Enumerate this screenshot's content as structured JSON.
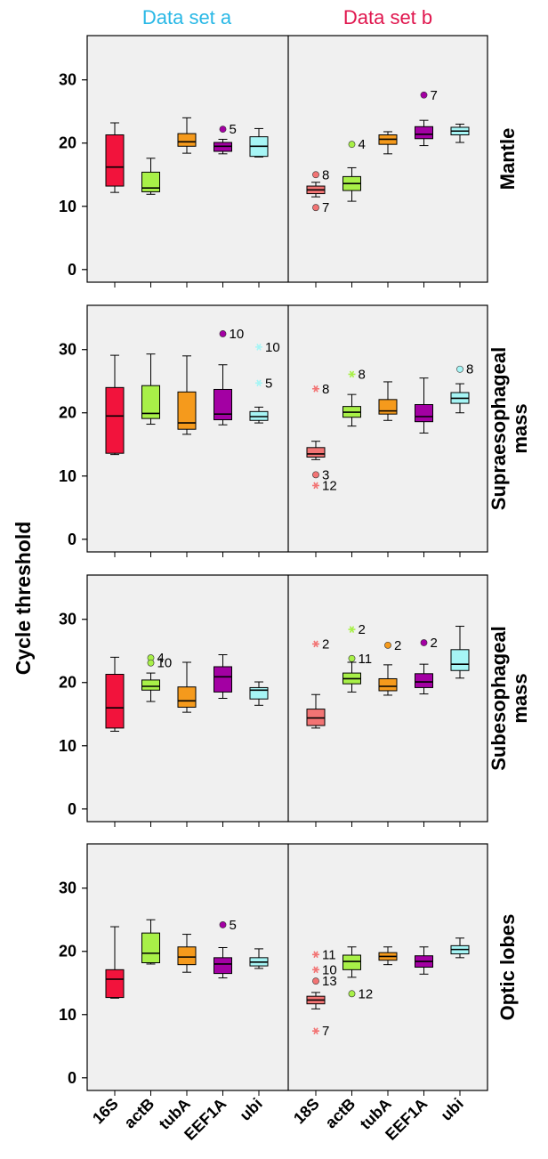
{
  "colors": {
    "16S": "#f2133c",
    "18S": "#f27474",
    "actB": "#a8f048",
    "tubA": "#f59a1c",
    "EEF1A": "#a300a3",
    "ubi": "#a6f5f5",
    "header_a": "#29b8e6",
    "header_b": "#e0164e"
  },
  "chart_data": {
    "type": "boxplot",
    "ylabel": "Cycle threshold",
    "ylim": [
      -2,
      37
    ],
    "yticks": [
      0,
      10,
      20,
      30
    ],
    "columns": [
      {
        "header": "Data set a",
        "categories": [
          "16S",
          "actB",
          "tubA",
          "EEF1A",
          "ubi"
        ]
      },
      {
        "header": "Data set b",
        "categories": [
          "18S",
          "actB",
          "tubA",
          "EEF1A",
          "ubi"
        ]
      }
    ],
    "rows": [
      {
        "label": [
          "Mantle"
        ],
        "panels": [
          [
            {
              "min": 12.2,
              "q1": 13.2,
              "median": 16.2,
              "q3": 21.3,
              "max": 23.2,
              "outliers": []
            },
            {
              "min": 11.9,
              "q1": 12.3,
              "median": 12.9,
              "q3": 15.4,
              "max": 17.6,
              "outliers": []
            },
            {
              "min": 18.4,
              "q1": 19.5,
              "median": 20.2,
              "q3": 21.5,
              "max": 24.0,
              "outliers": []
            },
            {
              "min": 18.3,
              "q1": 18.7,
              "median": 19.5,
              "q3": 20.1,
              "max": 20.6,
              "outliers": [
                {
                  "value": 22.2,
                  "label": "5",
                  "marker": "circle"
                }
              ]
            },
            {
              "min": 17.8,
              "q1": 17.9,
              "median": 19.5,
              "q3": 21.0,
              "max": 22.3,
              "outliers": []
            }
          ],
          [
            {
              "min": 11.5,
              "q1": 12.0,
              "median": 12.6,
              "q3": 13.2,
              "max": 13.8,
              "outliers": [
                {
                  "value": 15.0,
                  "label": "8",
                  "marker": "circle"
                },
                {
                  "value": 9.8,
                  "label": "7",
                  "marker": "circle"
                }
              ]
            },
            {
              "min": 10.8,
              "q1": 12.5,
              "median": 13.6,
              "q3": 14.7,
              "max": 16.1,
              "outliers": [
                {
                  "value": 19.8,
                  "label": "4",
                  "marker": "circle"
                }
              ]
            },
            {
              "min": 18.3,
              "q1": 19.8,
              "median": 20.6,
              "q3": 21.3,
              "max": 21.8,
              "outliers": []
            },
            {
              "min": 19.6,
              "q1": 20.7,
              "median": 21.4,
              "q3": 22.6,
              "max": 23.6,
              "outliers": [
                {
                  "value": 27.6,
                  "label": "7",
                  "marker": "circle"
                }
              ]
            },
            {
              "min": 20.1,
              "q1": 21.3,
              "median": 21.9,
              "q3": 22.5,
              "max": 23.0,
              "outliers": []
            }
          ]
        ]
      },
      {
        "label": [
          "Supraesophageal",
          "mass"
        ],
        "panels": [
          [
            {
              "min": 13.4,
              "q1": 13.6,
              "median": 19.5,
              "q3": 24.0,
              "max": 29.1,
              "outliers": []
            },
            {
              "min": 18.2,
              "q1": 19.1,
              "median": 19.9,
              "q3": 24.3,
              "max": 29.3,
              "outliers": []
            },
            {
              "min": 16.6,
              "q1": 17.4,
              "median": 18.4,
              "q3": 23.3,
              "max": 29.0,
              "outliers": []
            },
            {
              "min": 18.1,
              "q1": 18.9,
              "median": 19.8,
              "q3": 23.7,
              "max": 27.6,
              "outliers": [
                {
                  "value": 32.5,
                  "label": "10",
                  "marker": "circle"
                }
              ]
            },
            {
              "min": 18.4,
              "q1": 18.8,
              "median": 19.4,
              "q3": 20.2,
              "max": 20.9,
              "outliers": [
                {
                  "value": 30.4,
                  "label": "10",
                  "marker": "star"
                },
                {
                  "value": 24.7,
                  "label": "5",
                  "marker": "star"
                }
              ]
            }
          ],
          [
            {
              "min": 12.6,
              "q1": 13.0,
              "median": 13.5,
              "q3": 14.5,
              "max": 15.5,
              "outliers": [
                {
                  "value": 23.8,
                  "label": "8",
                  "marker": "star"
                },
                {
                  "value": 10.2,
                  "label": "3",
                  "marker": "circle"
                },
                {
                  "value": 8.5,
                  "label": "12",
                  "marker": "star"
                }
              ]
            },
            {
              "min": 17.9,
              "q1": 19.3,
              "median": 20.1,
              "q3": 21.0,
              "max": 22.9,
              "outliers": [
                {
                  "value": 26.1,
                  "label": "8",
                  "marker": "star"
                }
              ]
            },
            {
              "min": 18.8,
              "q1": 19.8,
              "median": 20.3,
              "q3": 22.1,
              "max": 24.9,
              "outliers": []
            },
            {
              "min": 16.8,
              "q1": 18.6,
              "median": 19.4,
              "q3": 21.3,
              "max": 25.5,
              "outliers": []
            },
            {
              "min": 20.0,
              "q1": 21.5,
              "median": 22.3,
              "q3": 23.2,
              "max": 24.6,
              "outliers": [
                {
                  "value": 26.9,
                  "label": "8",
                  "marker": "circle"
                }
              ]
            }
          ]
        ]
      },
      {
        "label": [
          "Subesophageal",
          "mass"
        ],
        "panels": [
          [
            {
              "min": 12.3,
              "q1": 12.8,
              "median": 16.0,
              "q3": 21.3,
              "max": 24.0,
              "outliers": []
            },
            {
              "min": 17.0,
              "q1": 18.8,
              "median": 19.4,
              "q3": 20.4,
              "max": 21.5,
              "outliers": [
                {
                  "value": 23.9,
                  "label": "4",
                  "marker": "circle"
                },
                {
                  "value": 23.1,
                  "label": "10",
                  "marker": "circle"
                }
              ]
            },
            {
              "min": 15.3,
              "q1": 16.1,
              "median": 17.1,
              "q3": 19.3,
              "max": 23.2,
              "outliers": []
            },
            {
              "min": 17.5,
              "q1": 18.5,
              "median": 20.9,
              "q3": 22.5,
              "max": 24.4,
              "outliers": []
            },
            {
              "min": 16.4,
              "q1": 17.4,
              "median": 18.8,
              "q3": 19.2,
              "max": 20.1,
              "outliers": []
            }
          ],
          [
            {
              "min": 12.8,
              "q1": 13.2,
              "median": 14.4,
              "q3": 15.8,
              "max": 18.1,
              "outliers": [
                {
                  "value": 26.1,
                  "label": "2",
                  "marker": "star"
                }
              ]
            },
            {
              "min": 18.5,
              "q1": 19.8,
              "median": 20.6,
              "q3": 21.5,
              "max": 23.2,
              "outliers": [
                {
                  "value": 28.4,
                  "label": "2",
                  "marker": "star"
                },
                {
                  "value": 23.8,
                  "label": "11",
                  "marker": "circle"
                }
              ]
            },
            {
              "min": 18.0,
              "q1": 18.7,
              "median": 19.4,
              "q3": 20.6,
              "max": 22.8,
              "outliers": [
                {
                  "value": 25.9,
                  "label": "2",
                  "marker": "circle"
                }
              ]
            },
            {
              "min": 18.2,
              "q1": 19.2,
              "median": 20.1,
              "q3": 21.4,
              "max": 22.9,
              "outliers": [
                {
                  "value": 26.3,
                  "label": "2",
                  "marker": "circle"
                }
              ]
            },
            {
              "min": 20.7,
              "q1": 21.9,
              "median": 22.9,
              "q3": 25.2,
              "max": 28.9,
              "outliers": []
            }
          ]
        ]
      },
      {
        "label": [
          "Optic lobes"
        ],
        "panels": [
          [
            {
              "min": 12.6,
              "q1": 12.7,
              "median": 15.6,
              "q3": 17.1,
              "max": 23.9,
              "outliers": []
            },
            {
              "min": 18.0,
              "q1": 18.2,
              "median": 19.7,
              "q3": 22.9,
              "max": 25.0,
              "outliers": []
            },
            {
              "min": 16.7,
              "q1": 17.9,
              "median": 19.1,
              "q3": 20.7,
              "max": 22.7,
              "outliers": []
            },
            {
              "min": 15.8,
              "q1": 16.5,
              "median": 18.0,
              "q3": 19.0,
              "max": 20.6,
              "outliers": [
                {
                  "value": 24.2,
                  "label": "5",
                  "marker": "circle"
                }
              ]
            },
            {
              "min": 17.3,
              "q1": 17.7,
              "median": 18.3,
              "q3": 19.0,
              "max": 20.4,
              "outliers": []
            }
          ],
          [
            {
              "min": 10.9,
              "q1": 11.7,
              "median": 12.3,
              "q3": 12.9,
              "max": 13.5,
              "outliers": [
                {
                  "value": 19.5,
                  "label": "11",
                  "marker": "star"
                },
                {
                  "value": 17.1,
                  "label": "10",
                  "marker": "star"
                },
                {
                  "value": 15.3,
                  "label": "13",
                  "marker": "circle"
                },
                {
                  "value": 7.4,
                  "label": "7",
                  "marker": "star"
                }
              ]
            },
            {
              "min": 15.9,
              "q1": 17.1,
              "median": 18.4,
              "q3": 19.4,
              "max": 20.7,
              "outliers": [
                {
                  "value": 13.3,
                  "label": "12",
                  "marker": "circle"
                }
              ]
            },
            {
              "min": 17.9,
              "q1": 18.6,
              "median": 19.2,
              "q3": 19.8,
              "max": 20.7,
              "outliers": []
            },
            {
              "min": 16.4,
              "q1": 17.5,
              "median": 18.4,
              "q3": 19.3,
              "max": 20.7,
              "outliers": []
            },
            {
              "min": 19.0,
              "q1": 19.6,
              "median": 20.3,
              "q3": 20.9,
              "max": 22.1,
              "outliers": []
            }
          ]
        ]
      }
    ]
  }
}
